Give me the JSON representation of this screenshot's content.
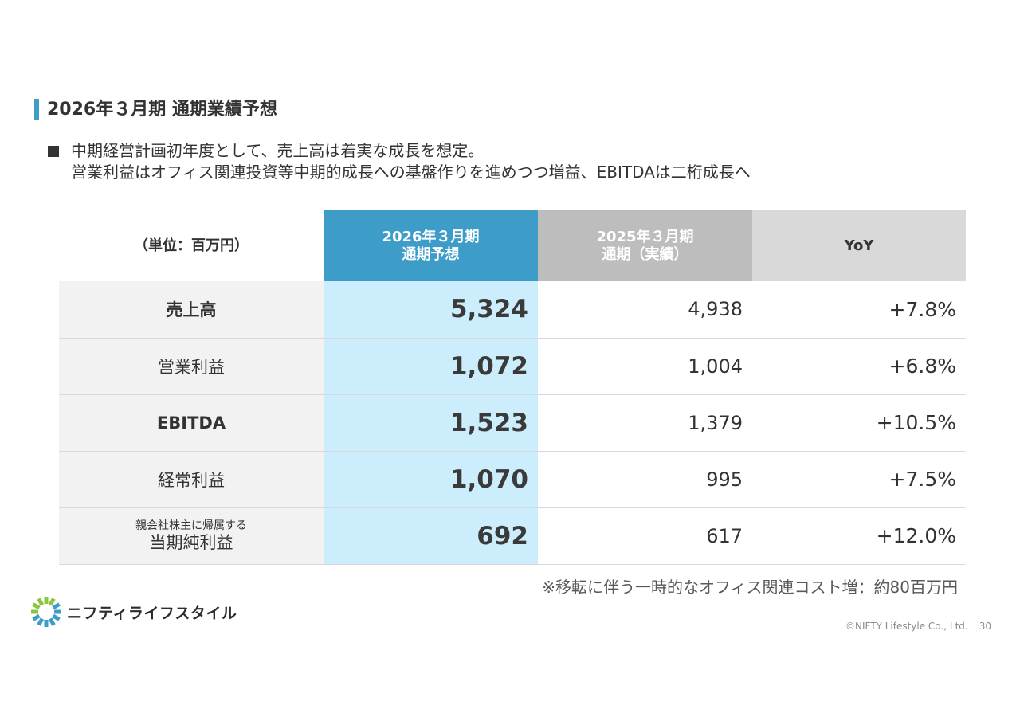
{
  "slide": {
    "title": "2026年３月期 通期業績予想",
    "bullet": {
      "line1": "中期経営計画初年度として、売上高は着実な成長を想定。",
      "line2": "営業利益はオフィス関連投資等中期的成長への基盤作りを進めつつ増益、EBITDAは二桁成長へ"
    },
    "table": {
      "unit": "（単位：百万円）",
      "headers": {
        "forecast_line1": "2026年３月期",
        "forecast_line2": "通期予想",
        "prior_line1": "2025年３月期",
        "prior_line2": "通期（実績）",
        "yoy": "YoY"
      },
      "rows": [
        {
          "label": "売上高",
          "forecast": "5,324",
          "prior": "4,938",
          "yoy": "+7.8%"
        },
        {
          "label": "営業利益",
          "forecast": "1,072",
          "prior": "1,004",
          "yoy": "+6.8%"
        },
        {
          "label": "EBITDA",
          "forecast": "1,523",
          "prior": "1,379",
          "yoy": "+10.5%"
        },
        {
          "label": "経常利益",
          "forecast": "1,070",
          "prior": "995",
          "yoy": "+7.5%"
        },
        {
          "label_sub": "親会社株主に帰属する",
          "label": "当期純利益",
          "forecast": "692",
          "prior": "617",
          "yoy": "+12.0%"
        }
      ]
    },
    "note": "※移転に伴う一時的なオフィス関連コスト増：約80百万円",
    "logo": {
      "text": "ニフティライフスタイル",
      "icon": "burst-logo-icon",
      "colors": [
        "#3d9cc8",
        "#8cc63f"
      ]
    },
    "footer": {
      "copyright": "©NIFTY Lifestyle Co., Ltd.",
      "page": "30"
    },
    "colors": {
      "accent": "#3d9cc8",
      "forecast_fill": "#cceefc",
      "prior_header": "#bdbdbd",
      "yoy_header": "#d9d9d9"
    }
  }
}
